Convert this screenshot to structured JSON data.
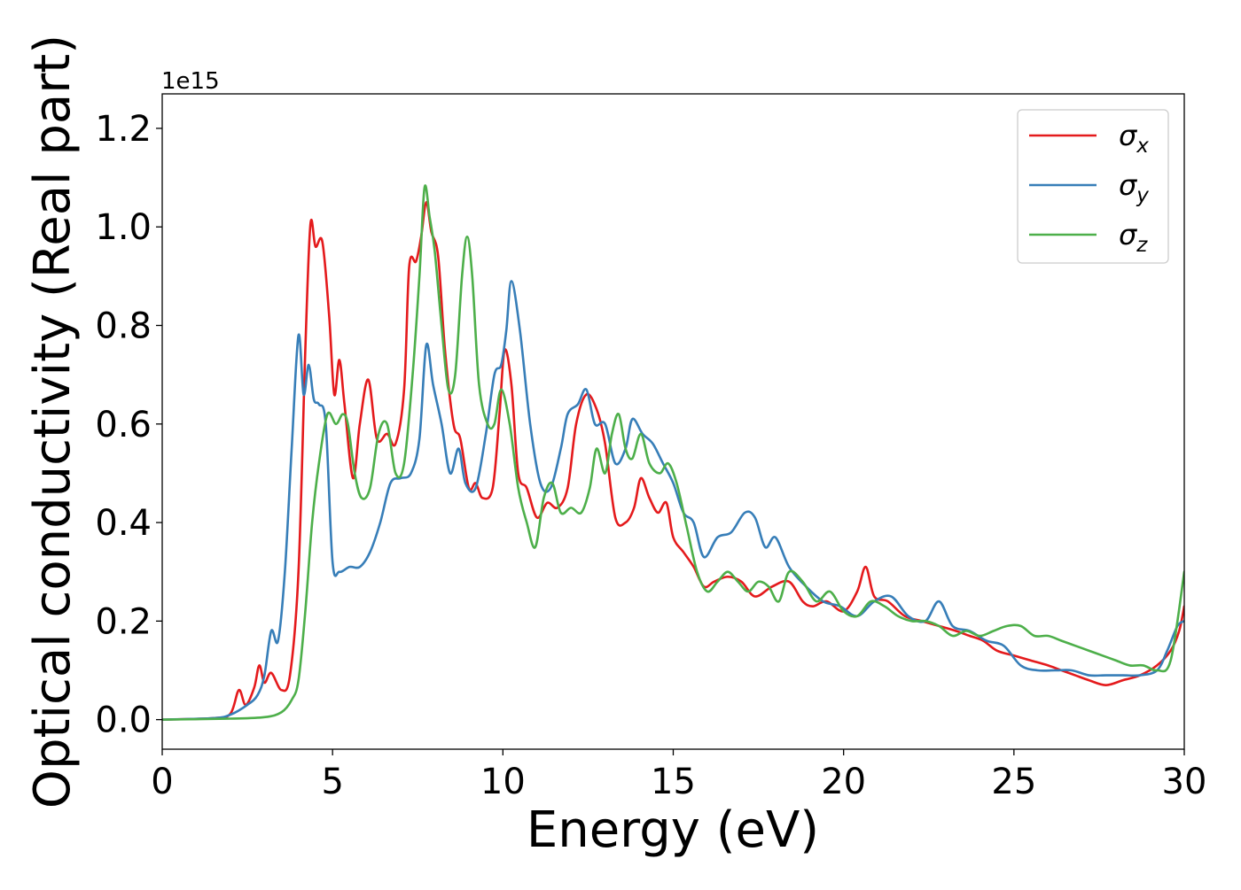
{
  "chart_data": {
    "type": "line",
    "title": "",
    "xlabel": "Energy (eV)",
    "ylabel": "Optical conductivity (Real part)",
    "y_offset_text": "1e15",
    "xlim": [
      0,
      30
    ],
    "ylim": [
      -0.06,
      1.27
    ],
    "x_ticks": [
      0,
      5,
      10,
      15,
      20,
      25,
      30
    ],
    "x_tick_labels": [
      "0",
      "5",
      "10",
      "15",
      "20",
      "25",
      "30"
    ],
    "y_ticks": [
      0.0,
      0.2,
      0.4,
      0.6,
      0.8,
      1.0,
      1.2
    ],
    "y_tick_labels": [
      "0.0",
      "0.2",
      "0.4",
      "0.6",
      "0.8",
      "1.0",
      "1.2"
    ],
    "grid": false,
    "legend_position": "top-right",
    "series": [
      {
        "name": "σx",
        "symbol": "σ",
        "subscript": "x",
        "color": "#e41a1c",
        "x": [
          0,
          1.5,
          2.0,
          2.25,
          2.45,
          2.7,
          2.85,
          3.0,
          3.2,
          3.5,
          3.75,
          4.0,
          4.2,
          4.35,
          4.5,
          4.7,
          4.9,
          5.05,
          5.2,
          5.35,
          5.6,
          5.8,
          6.05,
          6.3,
          6.6,
          6.85,
          7.1,
          7.25,
          7.45,
          7.6,
          7.75,
          7.9,
          8.1,
          8.3,
          8.55,
          8.75,
          9.0,
          9.2,
          9.4,
          9.7,
          9.9,
          10.05,
          10.25,
          10.45,
          10.7,
          11.0,
          11.3,
          11.6,
          11.9,
          12.15,
          12.45,
          12.75,
          13.0,
          13.3,
          13.6,
          13.85,
          14.05,
          14.3,
          14.55,
          14.8,
          15.0,
          15.3,
          15.6,
          15.9,
          16.2,
          16.6,
          17.0,
          17.4,
          17.9,
          18.4,
          18.8,
          19.1,
          19.5,
          20.0,
          20.4,
          20.65,
          20.9,
          21.3,
          21.8,
          22.3,
          22.8,
          23.3,
          23.7,
          24.1,
          24.5,
          25.0,
          25.5,
          26.0,
          26.4,
          26.8,
          27.2,
          27.7,
          28.2,
          28.7,
          29.2,
          29.6,
          29.85,
          30.0
        ],
        "y": [
          0.0,
          0.003,
          0.012,
          0.06,
          0.03,
          0.065,
          0.11,
          0.075,
          0.095,
          0.06,
          0.09,
          0.3,
          0.75,
          1.005,
          0.96,
          0.97,
          0.82,
          0.66,
          0.73,
          0.64,
          0.49,
          0.6,
          0.69,
          0.57,
          0.58,
          0.56,
          0.67,
          0.92,
          0.93,
          0.98,
          1.05,
          0.99,
          0.94,
          0.75,
          0.6,
          0.57,
          0.47,
          0.48,
          0.45,
          0.47,
          0.62,
          0.75,
          0.68,
          0.5,
          0.47,
          0.41,
          0.44,
          0.43,
          0.47,
          0.6,
          0.66,
          0.63,
          0.56,
          0.41,
          0.4,
          0.43,
          0.49,
          0.45,
          0.42,
          0.44,
          0.37,
          0.34,
          0.31,
          0.27,
          0.28,
          0.29,
          0.28,
          0.25,
          0.27,
          0.28,
          0.24,
          0.23,
          0.24,
          0.22,
          0.26,
          0.31,
          0.25,
          0.24,
          0.21,
          0.2,
          0.19,
          0.18,
          0.17,
          0.16,
          0.14,
          0.13,
          0.12,
          0.11,
          0.1,
          0.09,
          0.08,
          0.07,
          0.08,
          0.09,
          0.11,
          0.14,
          0.18,
          0.23
        ]
      },
      {
        "name": "σy",
        "symbol": "σ",
        "subscript": "y",
        "color": "#377eb8",
        "x": [
          0,
          1.5,
          2.0,
          2.5,
          2.8,
          3.0,
          3.2,
          3.4,
          3.6,
          3.8,
          4.0,
          4.15,
          4.3,
          4.45,
          4.6,
          4.8,
          5.0,
          5.2,
          5.5,
          5.8,
          6.1,
          6.4,
          6.7,
          7.0,
          7.3,
          7.55,
          7.75,
          7.95,
          8.2,
          8.45,
          8.7,
          8.9,
          9.2,
          9.5,
          9.75,
          9.95,
          10.1,
          10.25,
          10.5,
          10.8,
          11.1,
          11.4,
          11.7,
          11.9,
          12.2,
          12.45,
          12.7,
          13.0,
          13.3,
          13.6,
          13.8,
          14.1,
          14.4,
          14.7,
          15.0,
          15.3,
          15.6,
          15.9,
          16.3,
          16.7,
          17.1,
          17.4,
          17.7,
          18.0,
          18.4,
          18.9,
          19.4,
          19.9,
          20.4,
          20.9,
          21.4,
          21.9,
          22.4,
          22.8,
          23.2,
          23.7,
          24.2,
          24.7,
          25.2,
          25.7,
          26.2,
          26.7,
          27.2,
          27.7,
          28.2,
          28.7,
          29.2,
          29.5,
          29.8,
          30.0
        ],
        "y": [
          0.0,
          0.003,
          0.01,
          0.03,
          0.05,
          0.09,
          0.18,
          0.16,
          0.3,
          0.55,
          0.78,
          0.66,
          0.72,
          0.65,
          0.64,
          0.6,
          0.32,
          0.3,
          0.31,
          0.31,
          0.34,
          0.4,
          0.48,
          0.49,
          0.5,
          0.57,
          0.76,
          0.68,
          0.6,
          0.5,
          0.55,
          0.48,
          0.47,
          0.58,
          0.7,
          0.72,
          0.79,
          0.89,
          0.79,
          0.6,
          0.48,
          0.47,
          0.55,
          0.62,
          0.64,
          0.67,
          0.6,
          0.6,
          0.52,
          0.55,
          0.61,
          0.58,
          0.56,
          0.52,
          0.48,
          0.42,
          0.4,
          0.33,
          0.37,
          0.38,
          0.42,
          0.41,
          0.35,
          0.37,
          0.31,
          0.27,
          0.24,
          0.23,
          0.21,
          0.24,
          0.25,
          0.21,
          0.2,
          0.24,
          0.19,
          0.18,
          0.16,
          0.15,
          0.11,
          0.1,
          0.1,
          0.1,
          0.09,
          0.09,
          0.09,
          0.09,
          0.1,
          0.14,
          0.19,
          0.2
        ]
      },
      {
        "name": "σz",
        "symbol": "σ",
        "subscript": "z",
        "color": "#4daf4a",
        "x": [
          0,
          2.0,
          3.0,
          3.5,
          3.8,
          4.0,
          4.2,
          4.4,
          4.6,
          4.85,
          5.1,
          5.3,
          5.45,
          5.65,
          5.85,
          6.1,
          6.35,
          6.6,
          6.85,
          7.1,
          7.35,
          7.55,
          7.7,
          7.85,
          8.0,
          8.2,
          8.4,
          8.6,
          8.8,
          8.95,
          9.1,
          9.3,
          9.55,
          9.75,
          9.95,
          10.2,
          10.45,
          10.7,
          10.95,
          11.2,
          11.45,
          11.7,
          12.0,
          12.3,
          12.55,
          12.75,
          13.0,
          13.2,
          13.4,
          13.6,
          13.8,
          14.05,
          14.3,
          14.6,
          14.85,
          15.1,
          15.4,
          15.7,
          16.0,
          16.3,
          16.6,
          16.9,
          17.2,
          17.5,
          17.8,
          18.1,
          18.4,
          18.8,
          19.2,
          19.6,
          20.0,
          20.4,
          20.8,
          21.2,
          21.6,
          22.0,
          22.4,
          22.8,
          23.2,
          23.6,
          24.0,
          24.4,
          24.8,
          25.2,
          25.6,
          26.0,
          26.4,
          26.8,
          27.2,
          27.6,
          28.0,
          28.4,
          28.8,
          29.2,
          29.6,
          30.0
        ],
        "y": [
          0.0,
          0.002,
          0.005,
          0.015,
          0.04,
          0.08,
          0.22,
          0.4,
          0.52,
          0.62,
          0.6,
          0.62,
          0.6,
          0.5,
          0.45,
          0.47,
          0.58,
          0.6,
          0.5,
          0.52,
          0.7,
          0.9,
          1.08,
          1.02,
          0.95,
          0.8,
          0.67,
          0.7,
          0.9,
          0.98,
          0.9,
          0.68,
          0.6,
          0.6,
          0.67,
          0.6,
          0.47,
          0.4,
          0.35,
          0.45,
          0.48,
          0.42,
          0.43,
          0.42,
          0.47,
          0.55,
          0.5,
          0.58,
          0.62,
          0.55,
          0.53,
          0.58,
          0.52,
          0.5,
          0.52,
          0.48,
          0.39,
          0.3,
          0.26,
          0.28,
          0.3,
          0.28,
          0.26,
          0.28,
          0.27,
          0.24,
          0.3,
          0.28,
          0.24,
          0.26,
          0.22,
          0.21,
          0.24,
          0.23,
          0.21,
          0.2,
          0.2,
          0.19,
          0.17,
          0.18,
          0.17,
          0.18,
          0.19,
          0.19,
          0.17,
          0.17,
          0.16,
          0.15,
          0.14,
          0.13,
          0.12,
          0.11,
          0.11,
          0.1,
          0.12,
          0.3
        ]
      }
    ]
  }
}
